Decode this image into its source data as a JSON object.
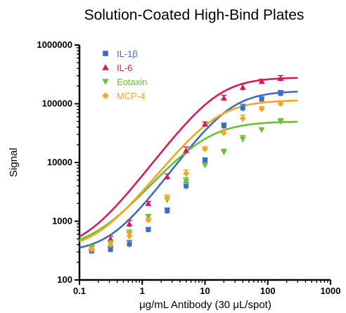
{
  "chart_data": {
    "type": "scatter",
    "title": "Solution-Coated High-Bind Plates",
    "xlabel": "μg/mL Antibody (30 μL/spot)",
    "ylabel": "Signal",
    "xscale": "log",
    "yscale": "log",
    "xlim": [
      0.1,
      1000
    ],
    "ylim": [
      100,
      1000000
    ],
    "xticks": [
      "0.1",
      "1",
      "10",
      "100",
      "1000"
    ],
    "yticks": [
      "100",
      "1000",
      "10000",
      "100000",
      "1000000"
    ],
    "legend": "top-left",
    "grid": false,
    "series": [
      {
        "name": "IL-1β",
        "color": "#3f6cc1",
        "marker": "square",
        "x": [
          0.156,
          0.3125,
          0.625,
          1.25,
          2.5,
          5,
          10,
          20,
          40,
          80,
          160
        ],
        "y": [
          310,
          330,
          410,
          720,
          1500,
          4000,
          11000,
          42000,
          85000,
          120000,
          150000
        ],
        "fit": {
          "bottom": 300,
          "top": 165000,
          "ec50": 25,
          "hill": 1.45
        }
      },
      {
        "name": "IL-6",
        "color": "#d81b5b",
        "marker": "triangle-up",
        "x": [
          0.156,
          0.3125,
          0.625,
          1.25,
          2.5,
          5,
          10,
          20,
          40,
          80,
          160
        ],
        "y": [
          350,
          500,
          900,
          2000,
          5700,
          16000,
          45000,
          125000,
          190000,
          240000,
          270000
        ],
        "fit": {
          "bottom": 320,
          "top": 280000,
          "ec50": 16,
          "hill": 1.4
        }
      },
      {
        "name": "Eotaxin",
        "color": "#6dbe3a",
        "marker": "triangle-down",
        "x": [
          0.156,
          0.3125,
          0.625,
          1.25,
          2.5,
          5,
          10,
          20,
          40,
          80,
          160
        ],
        "y": [
          360,
          420,
          620,
          1200,
          2300,
          4800,
          9000,
          15000,
          25000,
          36000,
          50000
        ],
        "fit": {
          "bottom": 330,
          "top": 50000,
          "ec50": 10,
          "hill": 1.25
        }
      },
      {
        "name": "MCP-4",
        "color": "#f5a623",
        "marker": "diamond",
        "x": [
          0.156,
          0.3125,
          0.625,
          1.25,
          2.5,
          5,
          10,
          20,
          40,
          80,
          160
        ],
        "y": [
          330,
          400,
          560,
          1050,
          2500,
          6500,
          17000,
          32000,
          56000,
          82000,
          100000
        ],
        "fit": {
          "bottom": 320,
          "top": 115000,
          "ec50": 15,
          "hill": 1.35
        }
      }
    ]
  }
}
